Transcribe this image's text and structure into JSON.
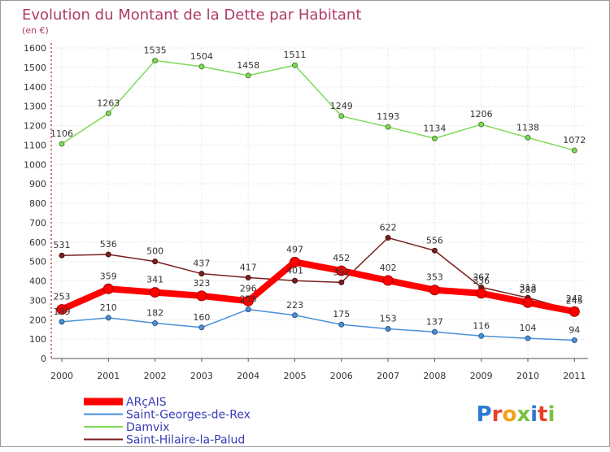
{
  "chart_data": {
    "type": "line",
    "title": "Evolution du Montant de la Dette par Habitant",
    "subtitle": "(en €)",
    "x": [
      "2000",
      "2001",
      "2002",
      "2003",
      "2004",
      "2005",
      "2006",
      "2007",
      "2008",
      "2009",
      "2010",
      "2011"
    ],
    "ylim": [
      0,
      1600
    ],
    "yticks": [
      0,
      100,
      200,
      300,
      400,
      500,
      600,
      700,
      800,
      900,
      1000,
      1100,
      1200,
      1300,
      1400,
      1500,
      1600
    ],
    "grid": true,
    "legend_position": "bottom-left",
    "series": [
      {
        "name": "ARçAIS",
        "color": "#ff0000",
        "values": [
          253,
          359,
          341,
          323,
          296,
          497,
          452,
          402,
          353,
          336,
          288,
          242
        ]
      },
      {
        "name": "Saint-Georges-de-Rex",
        "color": "#4a90d9",
        "values": [
          189,
          210,
          182,
          160,
          253,
          223,
          175,
          153,
          137,
          116,
          104,
          94
        ]
      },
      {
        "name": "Damvix",
        "color": "#7ed957",
        "values": [
          1106,
          1263,
          1535,
          1504,
          1458,
          1511,
          1249,
          1193,
          1134,
          1206,
          1138,
          1072
        ]
      },
      {
        "name": "Saint-Hilaire-la-Palud",
        "color": "#7a1f1f",
        "values": [
          531,
          536,
          500,
          437,
          417,
          401,
          392,
          622,
          556,
          367,
          313,
          245
        ]
      }
    ]
  },
  "logo": {
    "text": "Proxiti"
  }
}
